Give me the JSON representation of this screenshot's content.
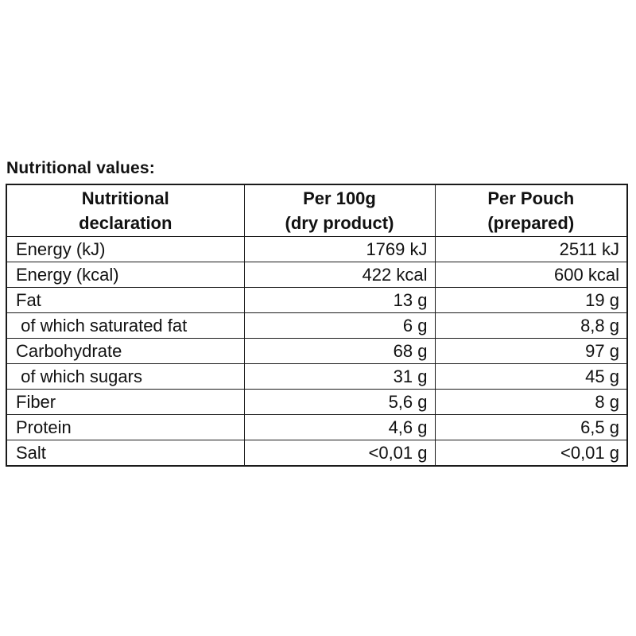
{
  "title": "Nutritional values:",
  "table": {
    "headers": {
      "declaration": "Nutritional\ndeclaration",
      "per_100g": "Per 100g\n(dry product)",
      "per_pouch": "Per Pouch\n(prepared)"
    },
    "rows": [
      {
        "label": "Energy (kJ)",
        "per_100g": "1769 kJ",
        "per_pouch": "2511 kJ"
      },
      {
        "label": "Energy (kcal)",
        "per_100g": "422 kcal",
        "per_pouch": "600 kcal"
      },
      {
        "label": "Fat",
        "per_100g": "13 g",
        "per_pouch": "19 g"
      },
      {
        "label": " of which saturated fat",
        "per_100g": "6 g",
        "per_pouch": "8,8 g"
      },
      {
        "label": "Carbohydrate",
        "per_100g": "68 g",
        "per_pouch": "97 g"
      },
      {
        "label": " of which sugars",
        "per_100g": "31 g",
        "per_pouch": "45 g"
      },
      {
        "label": "Fiber",
        "per_100g": "5,6 g",
        "per_pouch": "8 g"
      },
      {
        "label": "Protein",
        "per_100g": "4,6 g",
        "per_pouch": "6,5 g"
      },
      {
        "label": "Salt",
        "per_100g": "<0,01 g",
        "per_pouch": "<0,01 g"
      }
    ]
  }
}
